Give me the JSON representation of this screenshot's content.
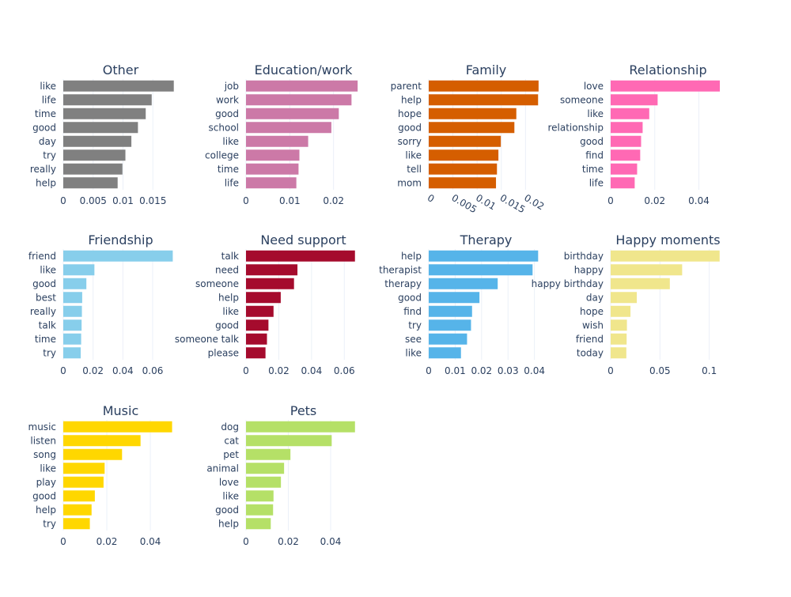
{
  "chart_data": [
    {
      "type": "bar",
      "orientation": "horizontal",
      "title": "Other",
      "color": "#808080",
      "categories": [
        "like",
        "life",
        "time",
        "good",
        "day",
        "try",
        "really",
        "help"
      ],
      "values": [
        0.0185,
        0.0148,
        0.0138,
        0.0125,
        0.0114,
        0.0104,
        0.0099,
        0.0091
      ],
      "xlim": [
        0,
        0.0192
      ],
      "ticks": [
        0,
        0.005,
        0.01,
        0.015
      ],
      "tick_labels": [
        "0",
        "0.005",
        "0.01",
        "0.015"
      ],
      "tick_angle": 0
    },
    {
      "type": "bar",
      "orientation": "horizontal",
      "title": "Education/work",
      "color": "#cc79a7",
      "categories": [
        "job",
        "work",
        "good",
        "school",
        "like",
        "college",
        "time",
        "life"
      ],
      "values": [
        0.0255,
        0.0241,
        0.0212,
        0.0195,
        0.0142,
        0.0122,
        0.012,
        0.0115
      ],
      "xlim": [
        0,
        0.0262
      ],
      "ticks": [
        0,
        0.01,
        0.02
      ],
      "tick_labels": [
        "0",
        "0.01",
        "0.02"
      ],
      "tick_angle": 0
    },
    {
      "type": "bar",
      "orientation": "horizontal",
      "title": "Family",
      "color": "#d55e00",
      "categories": [
        "parent",
        "help",
        "hope",
        "good",
        "sorry",
        "like",
        "tell",
        "mom"
      ],
      "values": [
        0.0227,
        0.0226,
        0.0181,
        0.0177,
        0.0149,
        0.0144,
        0.0141,
        0.0139
      ],
      "xlim": [
        0,
        0.0237
      ],
      "ticks": [
        0,
        0.005,
        0.01,
        0.015,
        0.02
      ],
      "tick_labels": [
        "0",
        "0.005",
        "0.01",
        "0.015",
        "0.02"
      ],
      "tick_angle": 30
    },
    {
      "type": "bar",
      "orientation": "horizontal",
      "title": "Relationship",
      "color": "#ff69b4",
      "categories": [
        "love",
        "someone",
        "like",
        "relationship",
        "good",
        "find",
        "time",
        "life"
      ],
      "values": [
        0.0495,
        0.0213,
        0.0175,
        0.0145,
        0.0138,
        0.0134,
        0.012,
        0.0109
      ],
      "xlim": [
        0,
        0.052
      ],
      "ticks": [
        0,
        0.02,
        0.04
      ],
      "tick_labels": [
        "0",
        "0.02",
        "0.04"
      ],
      "tick_angle": 0
    },
    {
      "type": "bar",
      "orientation": "horizontal",
      "title": "Friendship",
      "color": "#87ceeb",
      "categories": [
        "friend",
        "like",
        "good",
        "best",
        "really",
        "talk",
        "time",
        "try"
      ],
      "values": [
        0.0735,
        0.0209,
        0.0155,
        0.0127,
        0.0125,
        0.0123,
        0.012,
        0.0117
      ],
      "xlim": [
        0,
        0.077
      ],
      "ticks": [
        0,
        0.02,
        0.04,
        0.06
      ],
      "tick_labels": [
        "0",
        "0.02",
        "0.04",
        "0.06"
      ],
      "tick_angle": 0
    },
    {
      "type": "bar",
      "orientation": "horizontal",
      "title": "Need support",
      "color": "#a50b2d",
      "categories": [
        "talk",
        "need",
        "someone",
        "help",
        "like",
        "good",
        "someone talk",
        "please"
      ],
      "values": [
        0.0665,
        0.0314,
        0.0293,
        0.0212,
        0.0168,
        0.0137,
        0.0128,
        0.0119
      ],
      "xlim": [
        0,
        0.07
      ],
      "ticks": [
        0,
        0.02,
        0.04,
        0.06
      ],
      "tick_labels": [
        "0",
        "0.02",
        "0.04",
        "0.06"
      ],
      "tick_angle": 0
    },
    {
      "type": "bar",
      "orientation": "horizontal",
      "title": "Therapy",
      "color": "#56b4e9",
      "categories": [
        "help",
        "therapist",
        "therapy",
        "good",
        "find",
        "try",
        "see",
        "like"
      ],
      "values": [
        0.0414,
        0.0393,
        0.0261,
        0.0192,
        0.0164,
        0.016,
        0.0145,
        0.0122
      ],
      "xlim": [
        0,
        0.0434
      ],
      "ticks": [
        0,
        0.01,
        0.02,
        0.03,
        0.04
      ],
      "tick_labels": [
        "0",
        "0.01",
        "0.02",
        "0.03",
        "0.04"
      ],
      "tick_angle": 0
    },
    {
      "type": "bar",
      "orientation": "horizontal",
      "title": "Happy moments",
      "color": "#f0e68c",
      "categories": [
        "birthday",
        "happy",
        "happy birthday",
        "day",
        "hope",
        "wish",
        "friend",
        "today"
      ],
      "values": [
        0.1105,
        0.0725,
        0.06,
        0.0265,
        0.0201,
        0.0165,
        0.0162,
        0.0159
      ],
      "xlim": [
        0,
        0.1163
      ],
      "ticks": [
        0,
        0.05,
        0.1
      ],
      "tick_labels": [
        "0",
        "0.05",
        "0.1"
      ],
      "tick_angle": 0
    },
    {
      "type": "bar",
      "orientation": "horizontal",
      "title": "Music",
      "color": "#ffd700",
      "categories": [
        "music",
        "listen",
        "song",
        "like",
        "play",
        "good",
        "help",
        "try"
      ],
      "values": [
        0.05,
        0.0355,
        0.027,
        0.019,
        0.0185,
        0.0145,
        0.013,
        0.0122
      ],
      "xlim": [
        0,
        0.0527
      ],
      "ticks": [
        0,
        0.02,
        0.04
      ],
      "tick_labels": [
        "0",
        "0.02",
        "0.04"
      ],
      "tick_angle": 0
    },
    {
      "type": "bar",
      "orientation": "horizontal",
      "title": "Pets",
      "color": "#b5e067",
      "categories": [
        "dog",
        "cat",
        "pet",
        "animal",
        "love",
        "like",
        "good",
        "help"
      ],
      "values": [
        0.0515,
        0.0405,
        0.021,
        0.018,
        0.0165,
        0.013,
        0.0128,
        0.0117
      ],
      "xlim": [
        0,
        0.0542
      ],
      "ticks": [
        0,
        0.02,
        0.04
      ],
      "tick_labels": [
        "0",
        "0.02",
        "0.04"
      ],
      "tick_angle": 0
    }
  ]
}
